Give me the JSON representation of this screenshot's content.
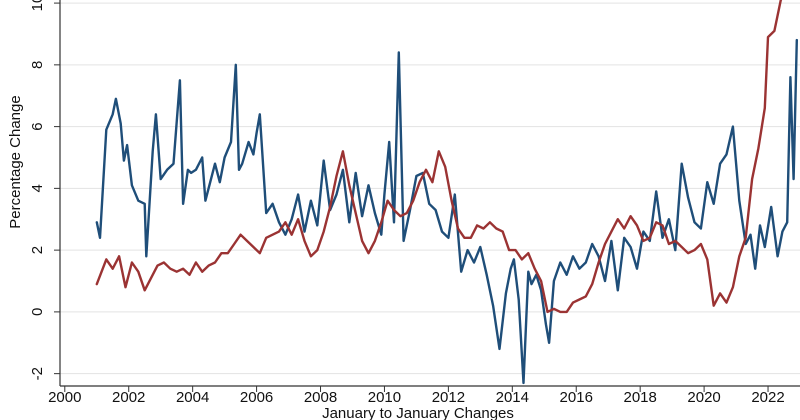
{
  "chart_data": {
    "type": "line",
    "xlabel": "January to January Changes",
    "ylabel": "Percentage Change",
    "xlim": [
      1999.85,
      2023.0
    ],
    "ylim": [
      -2.4,
      10.1
    ],
    "grid": true,
    "x_ticks": [
      2000,
      2002,
      2004,
      2006,
      2008,
      2010,
      2012,
      2014,
      2016,
      2018,
      2020,
      2022
    ],
    "x_tick_labels": [
      "2000",
      "2002",
      "2004",
      "2006",
      "2008",
      "2010",
      "2012",
      "2014",
      "2016",
      "2018",
      "2020",
      "2022"
    ],
    "y_ticks": [
      -2,
      0,
      2,
      4,
      6,
      8,
      10
    ],
    "y_tick_labels": [
      "-2",
      "0",
      "2",
      "4",
      "6",
      "8",
      "10"
    ],
    "series": [
      {
        "color": "#1f4e79",
        "x": [
          2001.0,
          2001.1,
          2001.3,
          2001.5,
          2001.6,
          2001.75,
          2001.85,
          2001.95,
          2002.1,
          2002.3,
          2002.5,
          2002.55,
          2002.75,
          2002.85,
          2003.0,
          2003.2,
          2003.4,
          2003.6,
          2003.7,
          2003.85,
          2003.95,
          2004.1,
          2004.3,
          2004.4,
          2004.55,
          2004.7,
          2004.85,
          2005.0,
          2005.2,
          2005.35,
          2005.45,
          2005.55,
          2005.75,
          2005.9,
          2006.0,
          2006.1,
          2006.3,
          2006.5,
          2006.7,
          2006.9,
          2007.1,
          2007.3,
          2007.5,
          2007.7,
          2007.9,
          2008.1,
          2008.3,
          2008.5,
          2008.7,
          2008.9,
          2009.1,
          2009.3,
          2009.5,
          2009.7,
          2009.9,
          2010.0,
          2010.15,
          2010.3,
          2010.45,
          2010.6,
          2010.8,
          2011.0,
          2011.2,
          2011.4,
          2011.6,
          2011.8,
          2012.0,
          2012.2,
          2012.4,
          2012.6,
          2012.8,
          2013.0,
          2013.2,
          2013.4,
          2013.6,
          2013.8,
          2013.95,
          2014.05,
          2014.2,
          2014.35,
          2014.5,
          2014.6,
          2014.75,
          2014.9,
          2015.05,
          2015.15,
          2015.3,
          2015.5,
          2015.7,
          2015.9,
          2016.1,
          2016.3,
          2016.5,
          2016.7,
          2016.9,
          2017.1,
          2017.3,
          2017.5,
          2017.7,
          2017.9,
          2018.1,
          2018.3,
          2018.5,
          2018.7,
          2018.9,
          2019.1,
          2019.3,
          2019.5,
          2019.7,
          2019.9,
          2020.1,
          2020.3,
          2020.5,
          2020.7,
          2020.9,
          2021.1,
          2021.3,
          2021.45,
          2021.6,
          2021.75,
          2021.9,
          2022.1,
          2022.3,
          2022.45,
          2022.6,
          2022.7,
          2022.8,
          2022.9
        ],
        "values": [
          2.9,
          2.4,
          5.9,
          6.4,
          6.9,
          6.1,
          4.9,
          5.4,
          4.1,
          3.6,
          3.5,
          1.8,
          5.2,
          6.4,
          4.3,
          4.6,
          4.8,
          7.5,
          3.5,
          4.6,
          4.5,
          4.6,
          5.0,
          3.6,
          4.2,
          4.8,
          4.2,
          5.0,
          5.5,
          8.0,
          4.6,
          4.8,
          5.5,
          5.1,
          5.8,
          6.4,
          3.2,
          3.5,
          2.9,
          2.5,
          3.0,
          3.8,
          2.6,
          3.6,
          2.8,
          4.9,
          3.3,
          3.8,
          4.6,
          2.9,
          4.5,
          3.1,
          4.1,
          3.2,
          2.5,
          3.8,
          5.5,
          2.9,
          8.4,
          2.3,
          3.3,
          4.4,
          4.5,
          3.5,
          3.3,
          2.6,
          2.4,
          3.8,
          1.3,
          2.0,
          1.6,
          2.1,
          1.2,
          0.2,
          -1.2,
          0.6,
          1.4,
          1.7,
          0.4,
          -2.3,
          1.3,
          0.9,
          1.2,
          0.7,
          -0.4,
          -1.0,
          1.0,
          1.6,
          1.2,
          1.8,
          1.4,
          1.6,
          2.2,
          1.8,
          1.0,
          2.3,
          0.7,
          2.4,
          2.1,
          1.4,
          2.6,
          2.3,
          3.9,
          2.4,
          3.0,
          2.0,
          4.8,
          3.7,
          2.9,
          2.7,
          4.2,
          3.5,
          4.8,
          5.1,
          6.0,
          3.6,
          2.2,
          2.5,
          1.4,
          2.8,
          2.1,
          3.4,
          1.8,
          2.6,
          2.9,
          7.6,
          4.3,
          8.8
        ]
      },
      {
        "color": "#9b3333",
        "x": [
          2001.0,
          2001.3,
          2001.5,
          2001.7,
          2001.9,
          2002.1,
          2002.3,
          2002.5,
          2002.7,
          2002.9,
          2003.1,
          2003.3,
          2003.5,
          2003.7,
          2003.9,
          2004.1,
          2004.3,
          2004.5,
          2004.7,
          2004.9,
          2005.1,
          2005.3,
          2005.5,
          2005.7,
          2005.9,
          2006.1,
          2006.3,
          2006.5,
          2006.7,
          2006.9,
          2007.1,
          2007.3,
          2007.5,
          2007.7,
          2007.9,
          2008.1,
          2008.3,
          2008.5,
          2008.7,
          2008.9,
          2009.1,
          2009.3,
          2009.5,
          2009.7,
          2009.9,
          2010.1,
          2010.3,
          2010.5,
          2010.7,
          2010.9,
          2011.1,
          2011.3,
          2011.5,
          2011.7,
          2011.9,
          2012.1,
          2012.3,
          2012.5,
          2012.7,
          2012.9,
          2013.1,
          2013.3,
          2013.5,
          2013.7,
          2013.9,
          2014.1,
          2014.3,
          2014.5,
          2014.7,
          2014.9,
          2015.1,
          2015.3,
          2015.5,
          2015.7,
          2015.9,
          2016.1,
          2016.3,
          2016.5,
          2016.7,
          2016.9,
          2017.1,
          2017.3,
          2017.5,
          2017.7,
          2017.9,
          2018.1,
          2018.3,
          2018.5,
          2018.7,
          2018.9,
          2019.1,
          2019.3,
          2019.5,
          2019.7,
          2019.9,
          2020.1,
          2020.3,
          2020.5,
          2020.7,
          2020.9,
          2021.1,
          2021.3,
          2021.5,
          2021.7,
          2021.9,
          2022.0,
          2022.2,
          2022.4,
          2022.6,
          2022.8
        ],
        "values": [
          0.9,
          1.7,
          1.4,
          1.8,
          0.8,
          1.6,
          1.3,
          0.7,
          1.1,
          1.5,
          1.6,
          1.4,
          1.3,
          1.4,
          1.2,
          1.6,
          1.3,
          1.5,
          1.6,
          1.9,
          1.9,
          2.2,
          2.5,
          2.3,
          2.1,
          1.9,
          2.4,
          2.5,
          2.6,
          2.9,
          2.5,
          3.0,
          2.3,
          1.8,
          2.0,
          2.6,
          3.4,
          4.4,
          5.2,
          4.1,
          3.2,
          2.3,
          1.9,
          2.3,
          2.9,
          3.6,
          3.3,
          3.1,
          3.2,
          3.6,
          4.2,
          4.6,
          4.2,
          5.2,
          4.7,
          3.6,
          2.7,
          2.4,
          2.4,
          2.8,
          2.7,
          2.9,
          2.7,
          2.6,
          2.0,
          2.0,
          1.7,
          1.9,
          1.4,
          1.0,
          0.0,
          0.1,
          0.0,
          0.0,
          0.3,
          0.4,
          0.5,
          0.9,
          1.6,
          2.2,
          2.6,
          3.0,
          2.7,
          3.1,
          2.8,
          2.3,
          2.4,
          2.9,
          2.8,
          2.2,
          2.3,
          2.1,
          1.9,
          2.0,
          2.2,
          1.7,
          0.2,
          0.6,
          0.3,
          0.8,
          1.8,
          2.4,
          4.3,
          5.3,
          6.6,
          8.9,
          9.1,
          10.1,
          10.4,
          10.7
        ]
      }
    ]
  }
}
